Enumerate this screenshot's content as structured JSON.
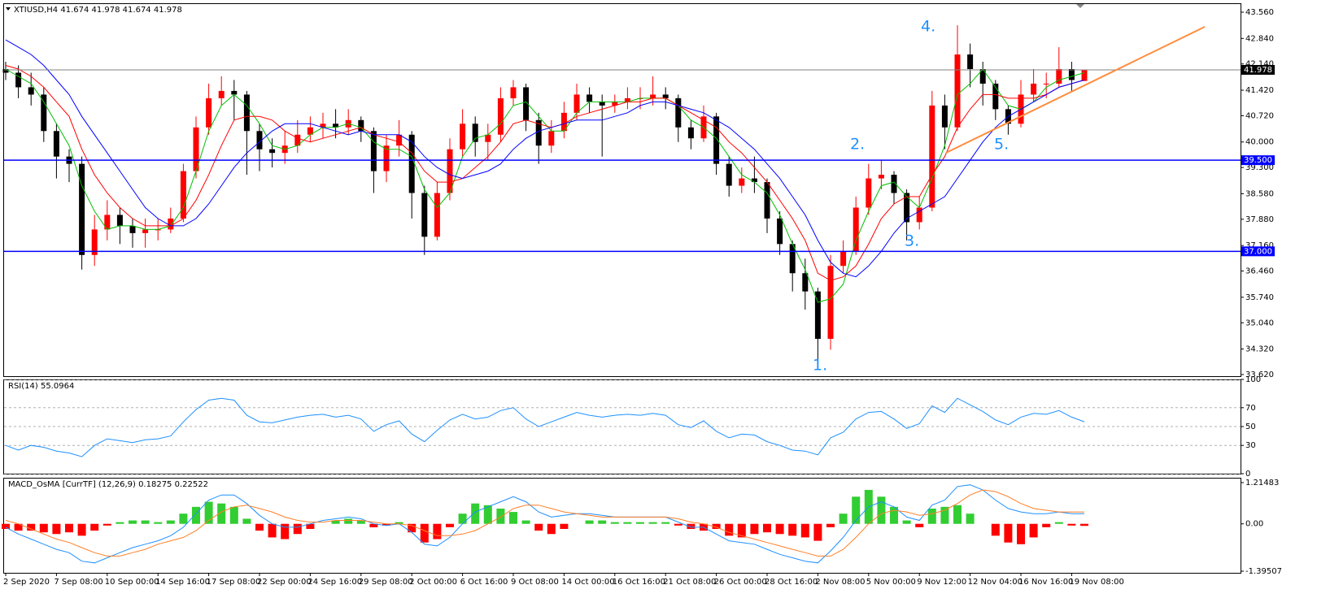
{
  "chart_data": [
    {
      "type": "candlestick",
      "title": "XTIUSD,H4  41.674 41.978 41.674 41.978",
      "open": [
        42.0,
        41.9,
        41.5,
        41.3,
        40.3,
        39.6,
        39.4,
        36.9,
        37.6,
        38.0,
        37.7,
        37.5,
        37.6,
        37.6,
        37.9,
        39.2,
        40.4,
        41.2,
        41.4,
        41.3,
        40.3,
        39.8,
        39.7,
        39.9,
        40.2,
        40.4,
        40.5,
        40.4,
        40.6,
        40.3,
        39.2,
        39.9,
        40.2,
        38.6,
        37.4,
        38.6,
        39.8,
        40.5,
        40.0,
        40.2,
        41.2,
        41.5,
        40.6,
        39.9,
        40.3,
        40.8,
        41.3,
        41.1,
        41.0,
        41.1,
        41.2,
        41.2,
        41.3,
        41.2,
        40.4,
        40.1,
        40.7,
        39.4,
        38.8,
        39.0,
        38.9,
        37.9,
        37.2,
        36.4,
        35.9,
        34.6,
        36.6,
        37.0,
        38.2,
        39.0,
        39.1,
        38.6,
        37.8,
        38.2,
        41.0,
        40.4,
        42.4,
        42.0,
        41.6,
        40.9,
        40.5,
        41.3,
        41.6,
        41.6,
        42.0,
        41.674
      ],
      "high": [
        42.2,
        42.1,
        41.9,
        41.5,
        40.5,
        39.8,
        39.6,
        38.0,
        38.4,
        38.2,
        37.9,
        37.9,
        37.9,
        38.2,
        39.4,
        40.7,
        41.6,
        41.8,
        41.7,
        41.4,
        40.5,
        40.1,
        40.3,
        40.6,
        40.7,
        40.8,
        40.9,
        40.9,
        40.7,
        40.4,
        40.2,
        40.6,
        40.3,
        38.8,
        38.9,
        40.1,
        40.9,
        40.7,
        40.5,
        41.5,
        41.7,
        41.6,
        40.8,
        40.6,
        41.1,
        41.6,
        41.5,
        41.3,
        41.3,
        41.5,
        41.5,
        41.8,
        41.5,
        41.3,
        40.6,
        41.0,
        40.8,
        39.6,
        39.3,
        39.6,
        39.0,
        38.1,
        37.3,
        36.8,
        36.0,
        36.9,
        37.3,
        38.5,
        39.4,
        39.5,
        39.2,
        38.7,
        38.5,
        41.4,
        41.3,
        43.2,
        42.7,
        42.2,
        41.7,
        41.0,
        41.7,
        42.0,
        41.9,
        42.6,
        42.2,
        41.978
      ],
      "low": [
        41.7,
        41.2,
        41.0,
        40.0,
        39.0,
        38.9,
        36.5,
        36.6,
        37.3,
        37.2,
        37.1,
        37.1,
        37.3,
        37.5,
        37.8,
        39.0,
        40.2,
        41.0,
        40.6,
        39.1,
        39.2,
        39.3,
        39.4,
        39.7,
        40.0,
        40.1,
        40.1,
        40.2,
        40.0,
        38.6,
        38.9,
        39.6,
        37.9,
        36.9,
        37.3,
        38.4,
        39.6,
        39.6,
        39.5,
        40.0,
        41.0,
        40.3,
        39.4,
        39.7,
        40.1,
        40.6,
        40.8,
        39.6,
        40.8,
        40.9,
        40.9,
        41.0,
        40.9,
        40.0,
        39.8,
        40.0,
        39.1,
        38.5,
        38.6,
        38.6,
        37.5,
        36.9,
        35.9,
        35.4,
        33.8,
        34.3,
        36.4,
        36.9,
        38.0,
        38.7,
        38.3,
        37.3,
        37.6,
        38.1,
        39.8,
        40.3,
        41.5,
        41.0,
        40.6,
        40.2,
        40.4,
        41.1,
        41.2,
        41.5,
        41.4,
        41.674
      ],
      "close": [
        41.9,
        41.5,
        41.3,
        40.3,
        39.6,
        39.4,
        36.9,
        37.6,
        38.0,
        37.7,
        37.5,
        37.6,
        37.6,
        37.9,
        39.2,
        40.4,
        41.2,
        41.4,
        41.3,
        40.3,
        39.8,
        39.7,
        39.9,
        40.2,
        40.4,
        40.5,
        40.4,
        40.6,
        40.3,
        39.2,
        39.9,
        40.2,
        38.6,
        37.4,
        38.6,
        39.8,
        40.5,
        40.0,
        40.2,
        41.2,
        41.5,
        40.6,
        39.9,
        40.3,
        40.8,
        41.3,
        41.1,
        41.0,
        41.1,
        41.2,
        41.2,
        41.3,
        41.2,
        40.4,
        40.1,
        40.7,
        39.4,
        38.8,
        39.0,
        38.9,
        37.9,
        37.2,
        36.4,
        35.9,
        34.6,
        36.6,
        37.0,
        38.2,
        39.0,
        39.1,
        38.6,
        37.8,
        38.2,
        41.0,
        40.4,
        42.4,
        42.0,
        41.6,
        40.9,
        40.5,
        41.3,
        41.6,
        41.6,
        42.0,
        41.7,
        41.978
      ],
      "up_color": "#ff0000",
      "down_color": "#000000",
      "series": [
        {
          "color": "#00c000",
          "values": [
            42.0,
            41.8,
            41.6,
            41.1,
            40.5,
            39.9,
            38.8,
            38.1,
            37.6,
            37.7,
            37.7,
            37.6,
            37.6,
            37.7,
            38.2,
            39.2,
            40.3,
            41.0,
            41.3,
            41.0,
            40.5,
            39.9,
            39.8,
            39.9,
            40.2,
            40.4,
            40.4,
            40.5,
            40.4,
            40.0,
            39.8,
            39.8,
            39.6,
            38.7,
            38.2,
            38.6,
            39.6,
            40.1,
            40.2,
            40.5,
            41.0,
            41.1,
            40.7,
            40.3,
            40.3,
            40.8,
            41.1,
            41.1,
            41.1,
            41.1,
            41.2,
            41.2,
            41.2,
            41.0,
            40.6,
            40.4,
            40.1,
            39.6,
            39.1,
            38.9,
            38.6,
            38.0,
            37.2,
            36.5,
            35.6,
            35.7,
            36.1,
            37.3,
            38.1,
            38.8,
            38.9,
            38.5,
            38.2,
            39.0,
            39.9,
            41.3,
            41.6,
            42.0,
            41.5,
            41.0,
            40.9,
            41.1,
            41.5,
            41.7,
            41.8,
            41.9
          ]
        },
        {
          "color": "#ff0000",
          "values": [
            42.1,
            42.0,
            41.8,
            41.5,
            41.1,
            40.7,
            39.8,
            39.1,
            38.6,
            38.2,
            37.9,
            37.7,
            37.7,
            37.7,
            37.9,
            38.4,
            39.1,
            39.9,
            40.6,
            40.7,
            40.7,
            40.6,
            40.3,
            40.1,
            40.0,
            40.1,
            40.2,
            40.3,
            40.4,
            40.2,
            40.1,
            40.0,
            39.7,
            39.2,
            38.9,
            38.9,
            39.0,
            39.3,
            39.6,
            40.0,
            40.5,
            40.6,
            40.5,
            40.4,
            40.5,
            40.7,
            40.8,
            40.9,
            41.0,
            41.1,
            41.1,
            41.2,
            41.2,
            41.0,
            40.8,
            40.6,
            40.4,
            40.0,
            39.7,
            39.3,
            38.9,
            38.4,
            37.9,
            37.3,
            36.4,
            36.2,
            36.3,
            36.6,
            37.2,
            37.9,
            38.3,
            38.5,
            38.5,
            39.1,
            39.6,
            40.4,
            40.9,
            41.3,
            41.3,
            41.2,
            41.2,
            41.2,
            41.3,
            41.5,
            41.6,
            41.7
          ]
        },
        {
          "color": "#0000ff",
          "values": [
            42.8,
            42.6,
            42.4,
            42.1,
            41.7,
            41.3,
            40.7,
            40.2,
            39.7,
            39.2,
            38.7,
            38.2,
            37.9,
            37.7,
            37.7,
            37.9,
            38.3,
            38.8,
            39.3,
            39.7,
            40.0,
            40.3,
            40.5,
            40.5,
            40.5,
            40.4,
            40.3,
            40.2,
            40.3,
            40.2,
            40.2,
            40.2,
            40.0,
            39.6,
            39.3,
            39.1,
            39.0,
            39.1,
            39.2,
            39.4,
            39.8,
            40.1,
            40.3,
            40.4,
            40.5,
            40.6,
            40.6,
            40.6,
            40.7,
            40.8,
            41.0,
            41.1,
            41.1,
            41.0,
            40.9,
            40.8,
            40.6,
            40.4,
            40.1,
            39.8,
            39.4,
            39.0,
            38.5,
            38.0,
            37.3,
            36.7,
            36.4,
            36.3,
            36.6,
            37.0,
            37.5,
            37.9,
            38.1,
            38.3,
            38.5,
            39.0,
            39.5,
            40.0,
            40.4,
            40.7,
            40.9,
            41.1,
            41.3,
            41.5,
            41.6,
            41.7
          ]
        }
      ],
      "hlines": [
        {
          "value": 41.978,
          "label": "41.978",
          "color": "#808080",
          "box_color": "#000000"
        },
        {
          "value": 39.5,
          "label": "39.500",
          "color": "#0000ff",
          "box_color": "#0000ff"
        },
        {
          "value": 37.0,
          "label": "37.000",
          "color": "#0000ff",
          "box_color": "#0000ff"
        }
      ],
      "annotations": [
        "1.",
        "2.",
        "3.",
        "4.",
        "5."
      ],
      "ylim": [
        33.575,
        43.783
      ],
      "yticks": [
        {
          "value": 43.56,
          "label": "43.560"
        },
        {
          "value": 42.84,
          "label": "42.840"
        },
        {
          "value": 42.14,
          "label": "42.140"
        },
        {
          "value": 41.42,
          "label": "41.420"
        },
        {
          "value": 40.72,
          "label": "40.720"
        },
        {
          "value": 40.0,
          "label": "40.000"
        },
        {
          "value": 39.3,
          "label": "39.300"
        },
        {
          "value": 38.58,
          "label": "38.580"
        },
        {
          "value": 37.88,
          "label": "37.880"
        },
        {
          "value": 37.16,
          "label": "37.160"
        },
        {
          "value": 36.46,
          "label": "36.460"
        },
        {
          "value": 35.74,
          "label": "35.740"
        },
        {
          "value": 35.04,
          "label": "35.040"
        },
        {
          "value": 34.32,
          "label": "34.320"
        },
        {
          "value": 33.62,
          "label": "33.620"
        }
      ],
      "grid": false
    },
    {
      "type": "line",
      "title": "RSI(14) 55.0964",
      "series": [
        {
          "color": "#1e90ff",
          "values": [
            30,
            25,
            30,
            28,
            24,
            22,
            18,
            30,
            37,
            35,
            33,
            36,
            37,
            40,
            55,
            68,
            78,
            80,
            78,
            62,
            55,
            54,
            57,
            60,
            62,
            63,
            60,
            62,
            58,
            45,
            52,
            56,
            42,
            34,
            46,
            57,
            63,
            58,
            60,
            67,
            70,
            58,
            50,
            55,
            60,
            65,
            62,
            60,
            62,
            63,
            62,
            64,
            62,
            52,
            49,
            56,
            45,
            38,
            42,
            41,
            34,
            30,
            25,
            24,
            20,
            38,
            44,
            58,
            65,
            66,
            58,
            48,
            53,
            72,
            65,
            80,
            73,
            66,
            57,
            52,
            60,
            64,
            63,
            67,
            60,
            55.1
          ]
        }
      ],
      "ylim": [
        0,
        100
      ],
      "yticks": [
        100,
        70,
        50,
        30,
        0
      ],
      "grid": true
    },
    {
      "type": "combo",
      "title": "MACD_OsMA [CurrTF] (12,26,9) 0.18275 0.22522",
      "values": [
        -0.15,
        -0.2,
        -0.2,
        -0.25,
        -0.3,
        -0.25,
        -0.35,
        -0.2,
        -0.05,
        0.05,
        0.1,
        0.1,
        0.05,
        0.1,
        0.3,
        0.5,
        0.65,
        0.6,
        0.5,
        0.15,
        -0.2,
        -0.4,
        -0.45,
        -0.3,
        -0.15,
        0.0,
        0.1,
        0.15,
        0.1,
        -0.1,
        -0.05,
        0.05,
        -0.25,
        -0.55,
        -0.45,
        -0.1,
        0.3,
        0.6,
        0.55,
        0.45,
        0.35,
        0.1,
        -0.2,
        -0.3,
        -0.15,
        0.0,
        0.1,
        0.1,
        0.05,
        0.05,
        0.05,
        0.05,
        0.05,
        -0.05,
        -0.15,
        -0.2,
        -0.15,
        -0.35,
        -0.4,
        -0.3,
        -0.25,
        -0.3,
        -0.35,
        -0.4,
        -0.5,
        -0.1,
        0.3,
        0.8,
        1.0,
        0.8,
        0.5,
        0.1,
        -0.1,
        0.45,
        0.5,
        0.55,
        0.3,
        0.0,
        -0.35,
        -0.55,
        -0.6,
        -0.4,
        -0.1,
        0.05,
        -0.05,
        -0.06
      ],
      "pos_color": "#32cd32",
      "neg_color": "#ff0000",
      "series": [
        {
          "color": "#1e90ff",
          "values": [
            -0.1,
            -0.3,
            -0.45,
            -0.6,
            -0.75,
            -0.85,
            -1.1,
            -1.15,
            -1.0,
            -0.85,
            -0.7,
            -0.6,
            -0.5,
            -0.35,
            -0.1,
            0.3,
            0.7,
            0.85,
            0.85,
            0.6,
            0.25,
            0.0,
            -0.1,
            -0.1,
            0.0,
            0.1,
            0.15,
            0.2,
            0.15,
            0.0,
            -0.05,
            0.0,
            -0.25,
            -0.6,
            -0.65,
            -0.4,
            0.0,
            0.35,
            0.5,
            0.65,
            0.8,
            0.65,
            0.35,
            0.2,
            0.25,
            0.3,
            0.3,
            0.25,
            0.2,
            0.2,
            0.2,
            0.2,
            0.2,
            0.05,
            -0.1,
            -0.1,
            -0.3,
            -0.5,
            -0.55,
            -0.6,
            -0.75,
            -0.9,
            -1.0,
            -1.1,
            -1.15,
            -0.8,
            -0.4,
            0.1,
            0.5,
            0.65,
            0.5,
            0.2,
            0.1,
            0.55,
            0.7,
            1.1,
            1.15,
            1.0,
            0.7,
            0.45,
            0.35,
            0.3,
            0.3,
            0.35,
            0.3,
            0.3
          ]
        },
        {
          "color": "#ff7f27",
          "values": [
            0.1,
            0.0,
            -0.15,
            -0.3,
            -0.45,
            -0.55,
            -0.7,
            -0.85,
            -0.95,
            -0.95,
            -0.85,
            -0.75,
            -0.6,
            -0.5,
            -0.4,
            -0.2,
            0.1,
            0.35,
            0.5,
            0.55,
            0.45,
            0.35,
            0.2,
            0.1,
            0.05,
            0.05,
            0.1,
            0.1,
            0.1,
            0.05,
            0.0,
            0.0,
            -0.05,
            -0.2,
            -0.35,
            -0.35,
            -0.3,
            -0.2,
            0.0,
            0.2,
            0.45,
            0.55,
            0.55,
            0.45,
            0.35,
            0.3,
            0.25,
            0.2,
            0.2,
            0.2,
            0.2,
            0.2,
            0.2,
            0.15,
            0.05,
            0.0,
            -0.1,
            -0.25,
            -0.35,
            -0.45,
            -0.55,
            -0.65,
            -0.75,
            -0.85,
            -0.95,
            -0.95,
            -0.75,
            -0.4,
            0.0,
            0.3,
            0.4,
            0.35,
            0.25,
            0.3,
            0.4,
            0.6,
            0.85,
            1.0,
            0.95,
            0.8,
            0.6,
            0.45,
            0.4,
            0.35,
            0.35,
            0.35
          ]
        }
      ],
      "categories": [
        "2 Sep 2020",
        null,
        null,
        null,
        "7 Sep 08:00",
        null,
        null,
        null,
        "10 Sep 00:00",
        null,
        null,
        null,
        "14 Sep 16:00",
        null,
        null,
        null,
        "17 Sep 08:00",
        null,
        null,
        null,
        "22 Sep 00:00",
        null,
        null,
        null,
        "24 Sep 16:00",
        null,
        null,
        null,
        "29 Sep 08:00",
        null,
        null,
        null,
        "2 Oct 00:00",
        null,
        null,
        null,
        "6 Oct 16:00",
        null,
        null,
        null,
        "9 Oct 08:00",
        null,
        null,
        null,
        "14 Oct 00:00",
        null,
        null,
        null,
        "16 Oct 16:00",
        null,
        null,
        null,
        "21 Oct 08:00",
        null,
        null,
        null,
        "26 Oct 00:00",
        null,
        null,
        null,
        "28 Oct 16:00",
        null,
        null,
        null,
        "2 Nov 08:00",
        null,
        null,
        null,
        "5 Nov 00:00",
        null,
        null,
        null,
        "9 Nov 12:00",
        null,
        null,
        null,
        "12 Nov 04:00",
        null,
        null,
        null,
        "16 Nov 16:00",
        null,
        null,
        null,
        "19 Nov 08:00",
        null
      ],
      "ylim": [
        -1.443,
        1.334
      ],
      "yticks": [
        {
          "value": 1.21483,
          "label": "1.21483"
        },
        {
          "value": 0,
          "label": "0.00"
        },
        {
          "value": -1.39507,
          "label": "-1.39507"
        }
      ],
      "grid": false
    }
  ]
}
